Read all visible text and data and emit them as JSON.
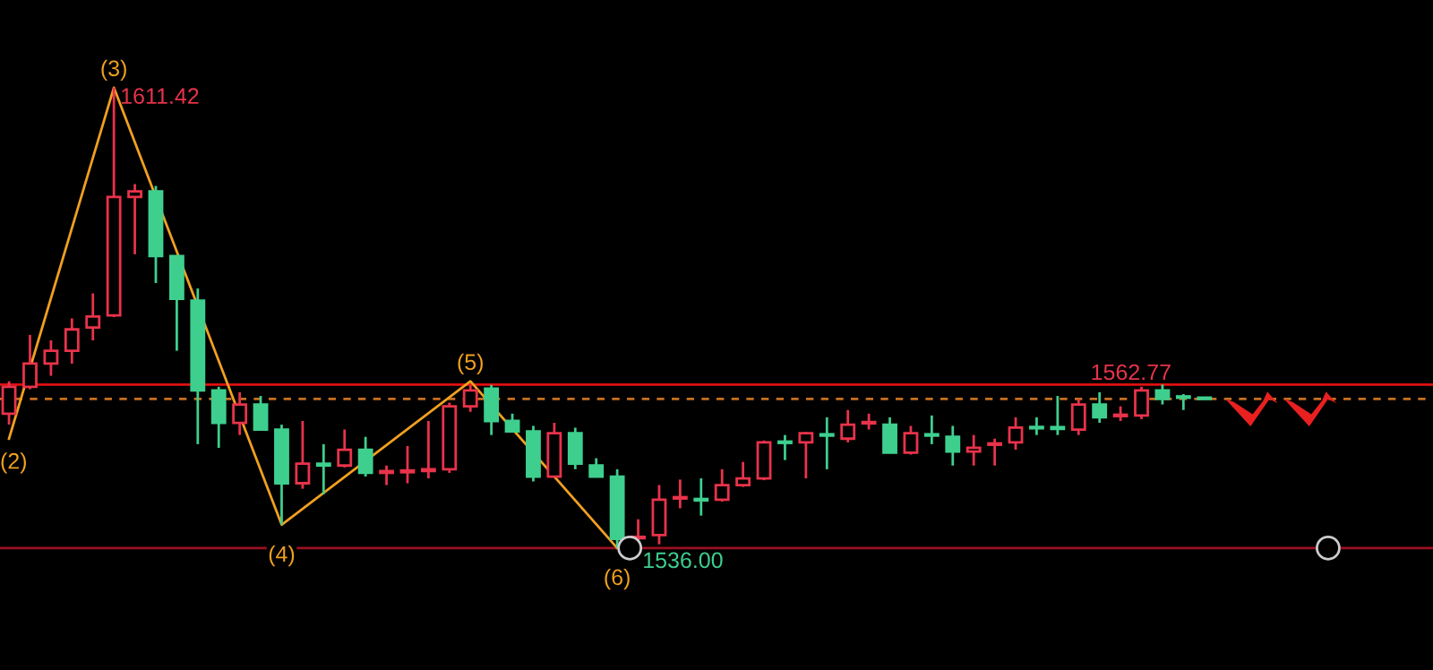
{
  "chart_data": {
    "type": "candlestick",
    "categories": [
      null,
      null,
      null,
      null,
      null,
      null,
      null,
      null,
      null,
      null,
      null,
      null,
      null,
      null,
      null,
      null,
      null,
      null,
      null,
      null,
      null,
      null,
      null,
      null,
      null,
      null,
      null,
      null,
      null,
      null,
      null,
      null,
      null,
      null,
      null,
      null,
      null,
      null,
      null,
      null,
      null,
      null,
      null,
      null,
      null,
      null,
      null,
      null,
      null,
      null,
      null,
      null,
      null,
      null,
      null,
      null,
      null,
      null
    ],
    "ohlc": [
      [
        1558.0,
        1563.3,
        1556.2,
        1562.4
      ],
      [
        1562.4,
        1570.9,
        1562.0,
        1566.2
      ],
      [
        1566.2,
        1570.0,
        1564.2,
        1568.3
      ],
      [
        1568.3,
        1573.6,
        1566.2,
        1571.8
      ],
      [
        1572.1,
        1577.7,
        1570.0,
        1573.9
      ],
      [
        1574.1,
        1611.42,
        1573.8,
        1593.5
      ],
      [
        1593.5,
        1595.6,
        1584.1,
        1594.4
      ],
      [
        1594.4,
        1595.3,
        1579.4,
        1583.8
      ],
      [
        1583.8,
        1583.8,
        1568.3,
        1576.8
      ],
      [
        1576.5,
        1578.5,
        1553.0,
        1561.8
      ],
      [
        1561.8,
        1562.4,
        1552.4,
        1556.5
      ],
      [
        1556.5,
        1561.5,
        1554.5,
        1559.5
      ],
      [
        1559.5,
        1560.9,
        1555.4,
        1555.4
      ],
      [
        1555.4,
        1556.2,
        1539.8,
        1546.6
      ],
      [
        1546.6,
        1556.8,
        1545.7,
        1549.8
      ],
      [
        1549.8,
        1553.0,
        1544.8,
        1549.5
      ],
      [
        1549.5,
        1555.4,
        1549.2,
        1552.1
      ],
      [
        1552.1,
        1554.2,
        1547.7,
        1548.3
      ],
      [
        1548.3,
        1549.5,
        1546.3,
        1548.6
      ],
      [
        1548.4,
        1552.7,
        1546.6,
        1548.7
      ],
      [
        1548.6,
        1556.8,
        1547.4,
        1548.9
      ],
      [
        1548.9,
        1559.8,
        1548.3,
        1559.2
      ],
      [
        1559.2,
        1562.7,
        1558.3,
        1561.8
      ],
      [
        1562.1,
        1562.7,
        1554.5,
        1556.8
      ],
      [
        1556.8,
        1558.0,
        1555.1,
        1555.1
      ],
      [
        1555.1,
        1556.0,
        1546.9,
        1547.7
      ],
      [
        1547.7,
        1556.5,
        1547.7,
        1554.8
      ],
      [
        1554.8,
        1555.7,
        1548.9,
        1549.8
      ],
      [
        1549.5,
        1550.7,
        1547.7,
        1547.7
      ],
      [
        1547.7,
        1548.9,
        1536.0,
        1537.5
      ],
      [
        1537.6,
        1540.7,
        1536.6,
        1537.8
      ],
      [
        1538.1,
        1546.3,
        1536.6,
        1543.9
      ],
      [
        1544.1,
        1547.2,
        1542.5,
        1544.3
      ],
      [
        1544.0,
        1547.4,
        1541.3,
        1543.8
      ],
      [
        1543.9,
        1548.9,
        1543.6,
        1546.3
      ],
      [
        1546.3,
        1550.1,
        1546.0,
        1547.4
      ],
      [
        1547.4,
        1553.6,
        1547.1,
        1553.3
      ],
      [
        1553.4,
        1554.5,
        1550.4,
        1553.2
      ],
      [
        1553.3,
        1555.0,
        1547.4,
        1554.8
      ],
      [
        1554.6,
        1557.4,
        1548.9,
        1554.4
      ],
      [
        1553.9,
        1558.6,
        1553.3,
        1556.2
      ],
      [
        1556.4,
        1558.0,
        1555.4,
        1556.6
      ],
      [
        1556.2,
        1557.4,
        1551.6,
        1551.6
      ],
      [
        1551.6,
        1556.0,
        1551.3,
        1554.8
      ],
      [
        1554.6,
        1557.7,
        1553.0,
        1554.4
      ],
      [
        1554.2,
        1556.0,
        1549.5,
        1551.8
      ],
      [
        1551.8,
        1554.5,
        1549.5,
        1552.4
      ],
      [
        1552.9,
        1553.9,
        1549.5,
        1553.1
      ],
      [
        1553.3,
        1557.4,
        1552.1,
        1555.7
      ],
      [
        1555.8,
        1557.4,
        1554.5,
        1555.6
      ],
      [
        1555.8,
        1560.9,
        1554.5,
        1555.5
      ],
      [
        1555.4,
        1560.4,
        1554.5,
        1559.5
      ],
      [
        1559.5,
        1561.5,
        1556.5,
        1557.4
      ],
      [
        1557.6,
        1559.2,
        1556.8,
        1557.8
      ],
      [
        1557.7,
        1562.4,
        1557.1,
        1561.8
      ],
      [
        1561.8,
        1562.77,
        1559.5,
        1560.4
      ],
      [
        1560.8,
        1561.2,
        1558.6,
        1560.6
      ],
      [
        1560.6,
        1560.6,
        1560.3,
        1560.4
      ]
    ],
    "colors": [
      "#e8334a",
      "#e8334a",
      "#e8334a",
      "#e8334a",
      "#e8334a",
      "#e8334a",
      "#e8334a",
      "#3ecf8e",
      "#3ecf8e",
      "#3ecf8e",
      "#3ecf8e",
      "#e8334a",
      "#3ecf8e",
      "#3ecf8e",
      "#e8334a",
      "#3ecf8e",
      "#e8334a",
      "#3ecf8e",
      "#e8334a",
      "#e8334a",
      "#e8334a",
      "#e8334a",
      "#e8334a",
      "#3ecf8e",
      "#3ecf8e",
      "#3ecf8e",
      "#e8334a",
      "#3ecf8e",
      "#3ecf8e",
      "#3ecf8e",
      "#e8334a",
      "#e8334a",
      "#e8334a",
      "#3ecf8e",
      "#e8334a",
      "#e8334a",
      "#e8334a",
      "#3ecf8e",
      "#e8334a",
      "#3ecf8e",
      "#e8334a",
      "#e8334a",
      "#3ecf8e",
      "#e8334a",
      "#3ecf8e",
      "#3ecf8e",
      "#e8334a",
      "#e8334a",
      "#e8334a",
      "#3ecf8e",
      "#3ecf8e",
      "#e8334a",
      "#3ecf8e",
      "#e8334a",
      "#e8334a",
      "#3ecf8e",
      "#3ecf8e",
      "#3ecf8e"
    ],
    "series": [
      {
        "type": "line",
        "color": "#f0a020",
        "values": [
          1553.9,
          null,
          null,
          null,
          null,
          1611.4,
          null,
          null,
          null,
          null,
          null,
          null,
          null,
          1539.8,
          null,
          null,
          null,
          null,
          null,
          null,
          null,
          null,
          1563.3,
          null,
          null,
          null,
          null,
          null,
          null,
          1536.0,
          null,
          null,
          null,
          null,
          null,
          null,
          null,
          null,
          null,
          null,
          null,
          null,
          null,
          null,
          null,
          null,
          null,
          null,
          null,
          null,
          null,
          null,
          null,
          null,
          null,
          null,
          null,
          null
        ]
      }
    ],
    "ref_lines": [
      {
        "axis": "y",
        "value": 1562.77,
        "label": "1562.77",
        "color": "#e01010",
        "line_style": "solid"
      },
      {
        "axis": "y",
        "value": 1536.0,
        "label": "1536.00",
        "color": "#9a1020",
        "line_style": "solid"
      },
      {
        "axis": "y",
        "value": 1560.4,
        "label": null,
        "color": "#c87020",
        "line_style": "dashed"
      }
    ],
    "annotations": [
      {
        "text": "(2)",
        "y": 1553.9
      },
      {
        "text": "(3)",
        "y": 1611.4
      },
      "1611.42",
      {
        "text": "(4)",
        "y": 1539.8
      },
      {
        "text": "(5)",
        "y": 1563.3
      },
      {
        "text": "(6)",
        "y": 1536.0
      }
    ]
  }
}
